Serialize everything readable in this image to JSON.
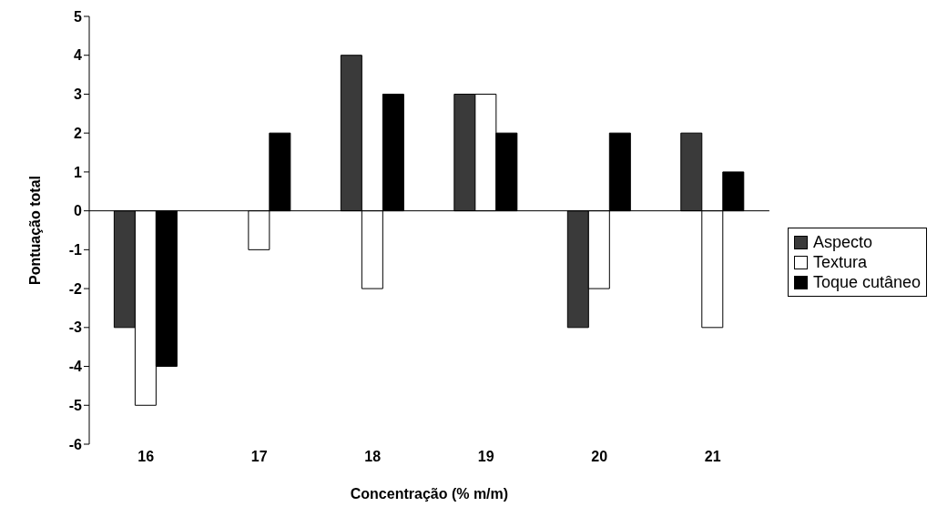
{
  "chart_data": {
    "type": "bar",
    "xlabel": "Concentração (% m/m)",
    "ylabel": "Pontuação total",
    "categories": [
      "16",
      "17",
      "18",
      "19",
      "20",
      "21"
    ],
    "series": [
      {
        "name": "Aspecto",
        "color": "#3a3a3a",
        "values": [
          -3,
          0,
          4,
          3,
          -3,
          2
        ]
      },
      {
        "name": "Textura",
        "color": "#ffffff",
        "values": [
          -5,
          -1,
          -2,
          3,
          -2,
          -3
        ]
      },
      {
        "name": "Toque cutâneo",
        "color": "#000000",
        "values": [
          -4,
          2,
          3,
          2,
          2,
          1
        ]
      }
    ],
    "ylim": [
      -6,
      5
    ],
    "yticks": [
      -6,
      -5,
      -4,
      -3,
      -2,
      -1,
      0,
      1,
      2,
      3,
      4,
      5
    ],
    "grid": false,
    "legend": "right",
    "ref_lines": [
      {
        "axis": "y",
        "value": 0,
        "color": "#000000"
      }
    ]
  }
}
